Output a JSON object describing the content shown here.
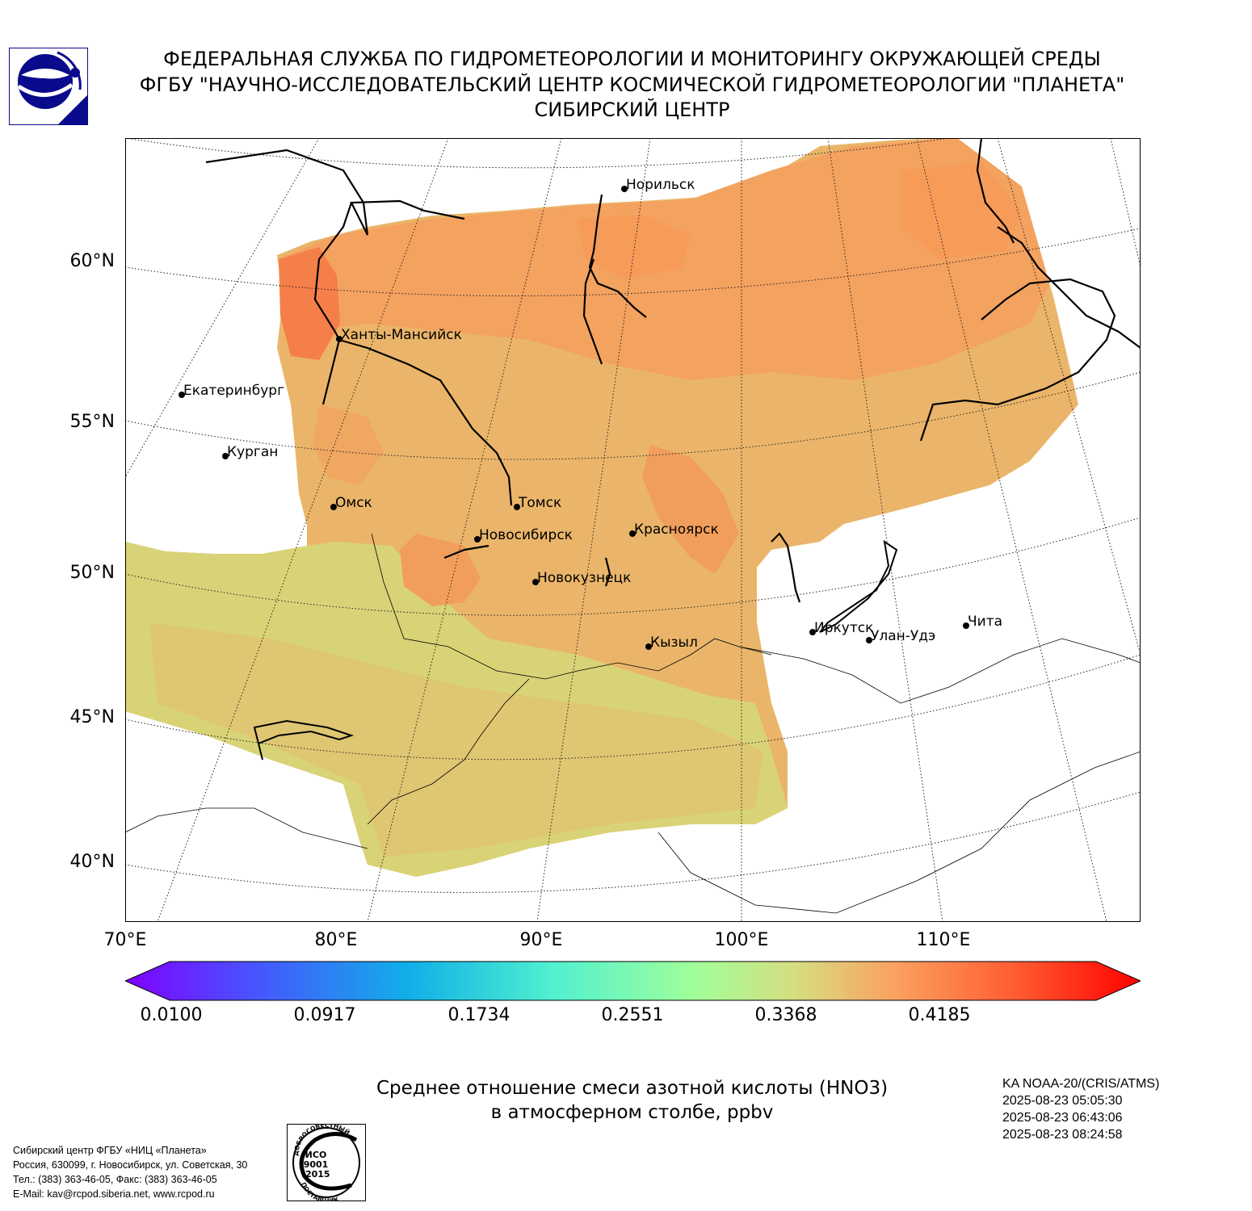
{
  "header": {
    "line1": "ФЕДЕРАЛЬНАЯ СЛУЖБА ПО ГИДРОМЕТЕОРОЛОГИИ И МОНИТОРИНГУ ОКРУЖАЮЩЕЙ СРЕДЫ",
    "line2": "ФГБУ \"НАУЧНО-ИССЛЕДОВАТЕЛЬСКИЙ ЦЕНТР КОСМИЧЕСКОЙ ГИДРОМЕТЕОРОЛОГИИ \"ПЛАНЕТА\"",
    "line3": "СИБИРСКИЙ ЦЕНТР"
  },
  "logo": {
    "icon": "planeta-emblem-icon",
    "color": "#0a0a8c"
  },
  "map": {
    "lat_labels": [
      "60°N",
      "55°N",
      "50°N",
      "45°N",
      "40°N"
    ],
    "lon_labels": [
      "70°E",
      "80°E",
      "90°E",
      "100°E",
      "110°E"
    ],
    "cities": [
      {
        "name": "Норильск"
      },
      {
        "name": "Ханты-Мансийск"
      },
      {
        "name": "Екатеринбург"
      },
      {
        "name": "Курган"
      },
      {
        "name": "Омск"
      },
      {
        "name": "Томск"
      },
      {
        "name": "Новосибирск"
      },
      {
        "name": "Красноярск"
      },
      {
        "name": "Новокузнецк"
      },
      {
        "name": "Кызыл"
      },
      {
        "name": "Иркутск"
      },
      {
        "name": "Улан-Удэ"
      },
      {
        "name": "Чита"
      }
    ],
    "field_colors": {
      "high": "#f98a4e",
      "mid": "#f4a65f",
      "low_mid": "#e9b768",
      "low": "#d8d676"
    }
  },
  "colorbar": {
    "ticks": [
      "0.0100",
      "0.0917",
      "0.1734",
      "0.2551",
      "0.3368",
      "0.4185"
    ],
    "colormap": "rainbow",
    "extend": "both"
  },
  "title": {
    "line1": "Среднее отношение смеси азотной кислоты (HNO3)",
    "line2": "в атмосферном столбе, ppbv"
  },
  "satellite": {
    "name": "KA NOAA-20/(CRIS/ATMS)",
    "times": [
      "2025-08-23 05:05:30",
      "2025-08-23 06:43:06",
      "2025-08-23 08:24:58"
    ]
  },
  "footer": {
    "lines": [
      "Сибирский центр ФГБУ «НИЦ «Планета»",
      "Россия, 630099, г. Новосибирск, ул. Советская, 30",
      "Тел.: (383) 363-46-05, Факс: (383) 363-46-05",
      "E-Mail: kav@rcpod.siberia.net, www.rcpod.ru"
    ]
  },
  "iso_badge": {
    "top_text": "ДОБРОСОВЕСТНЫЙ",
    "line1": "ИСО",
    "line2": "9001",
    "line3": "-2015",
    "bottom_text": "ПОСТАВЩИК"
  }
}
